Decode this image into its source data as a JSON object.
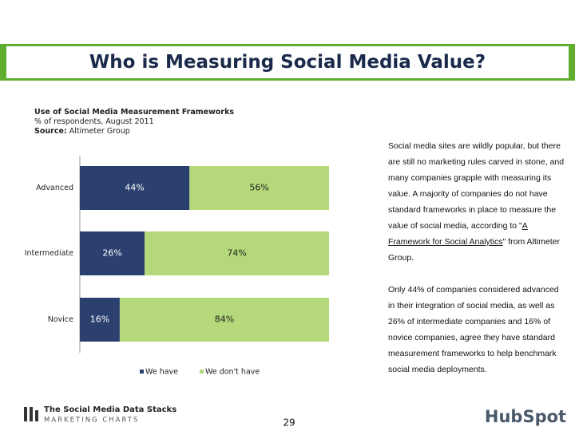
{
  "header": {
    "title": "Who is Measuring Social Media Value?"
  },
  "chart_data": {
    "type": "bar",
    "orientation": "horizontal",
    "stacked": true,
    "title": "Use of Social Media Measurement Frameworks",
    "subtitle": "% of respondents, August 2011",
    "source_label": "Source:",
    "source": "Altimeter Group",
    "categories": [
      "Advanced",
      "Intermediate",
      "Novice"
    ],
    "series": [
      {
        "name": "We have",
        "color": "#2c4070",
        "values": [
          44,
          26,
          16
        ],
        "value_labels": [
          "44%",
          "26%",
          "16%"
        ]
      },
      {
        "name": "We don't have",
        "color": "#b5d87a",
        "values": [
          56,
          74,
          84
        ],
        "value_labels": [
          "56%",
          "74%",
          "84%"
        ]
      }
    ],
    "xlim": [
      0,
      100
    ]
  },
  "body": {
    "paragraphs": [
      {
        "before": "Social media sites are wildly popular, but there are still no marketing rules carved in stone, and many companies grapple with measuring its value. A majority of companies do not have standard frameworks in place to measure the value of social media, according to \"",
        "link": "A Framework for Social Analytics",
        "after": "\" from Altimeter Group."
      },
      {
        "text": "Only 44% of companies considered advanced in their integration of social media, as well as 26% of intermediate companies and 16% of novice companies, agree they have standard measurement frameworks to help benchmark social media deployments."
      }
    ]
  },
  "footer": {
    "brand_line1": "The Social Media Data Stacks",
    "brand_line2": "MARKETING CHARTS",
    "page": "29",
    "logo": "HubSpot"
  }
}
